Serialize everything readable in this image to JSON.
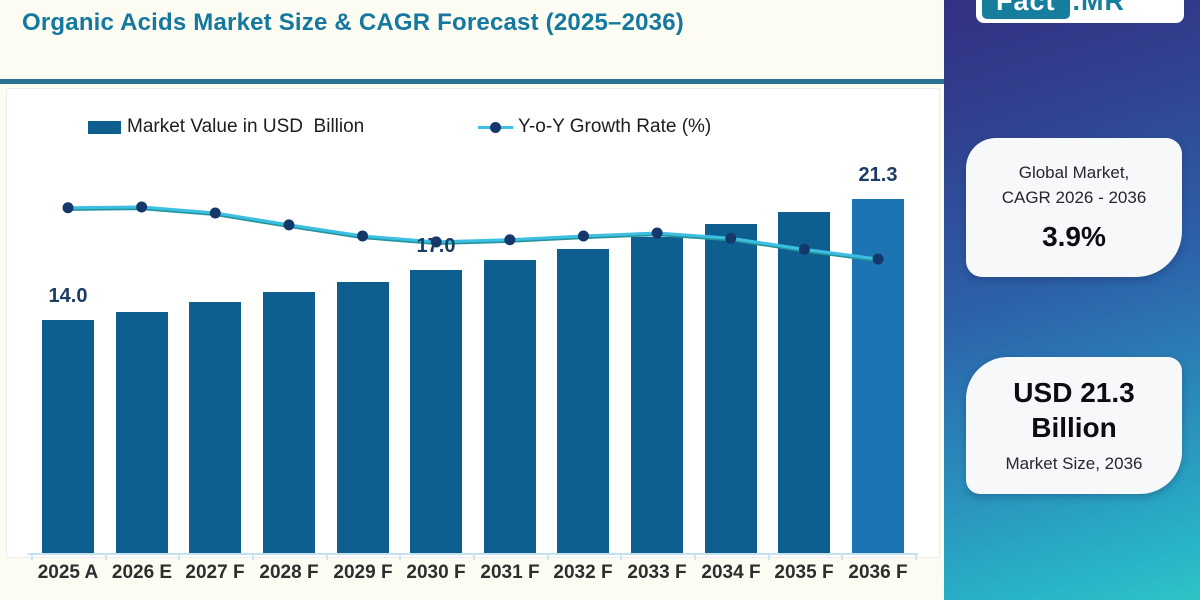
{
  "header": {
    "title": "Organic Acids Market Size & CAGR Forecast (2025–2036)"
  },
  "brand": {
    "logo_primary": "Fact",
    "logo_secondary": ".MR"
  },
  "legend": {
    "bar_series": "Market Value in USD  Billion",
    "line_series": "Y-o-Y Growth Rate (%)"
  },
  "sidebar": {
    "cagr_card": {
      "line1": "Global Market,",
      "line2": "CAGR 2026 - 2036",
      "value": "3.9%"
    },
    "size_card": {
      "value": "USD 21.3 Billion",
      "caption": "Market Size, 2036"
    }
  },
  "chart_data": {
    "type": "bar",
    "title": "Organic Acids Market Size & CAGR Forecast (2025–2036)",
    "categories": [
      "2025 A",
      "2026 E",
      "2027 F",
      "2028 F",
      "2029 F",
      "2030 F",
      "2031 F",
      "2032 F",
      "2033 F",
      "2034 F",
      "2035 F",
      "2036 F"
    ],
    "series": [
      {
        "name": "Market Value in USD Billion",
        "type": "bar",
        "unit": "USD Billion",
        "values": [
          14.0,
          14.5,
          15.1,
          15.7,
          16.3,
          17.0,
          17.6,
          18.3,
          19.0,
          19.8,
          20.5,
          21.3
        ],
        "data_labels": [
          "14.0",
          null,
          null,
          null,
          null,
          "17.0",
          null,
          null,
          null,
          null,
          null,
          "21.3"
        ]
      },
      {
        "name": "Y-o-Y Growth Rate (%)",
        "type": "line",
        "unit": "%",
        "values_estimated": true,
        "values": [
          4.29,
          4.3,
          4.22,
          4.06,
          3.91,
          3.83,
          3.86,
          3.91,
          3.95,
          3.88,
          3.73,
          3.6
        ]
      }
    ],
    "xlabel": "",
    "ylabel": "",
    "ylim_bar": [
      0,
      28
    ],
    "y_axis_visible": false,
    "grid": false,
    "legend_position": "top"
  },
  "colors": {
    "title_teal": "#15789f",
    "divider_teal": "#2a7292",
    "bar_blue": "#0e5e8f",
    "bar_last_blue": "#1d74b2",
    "line_cyan": "#3cbfe2",
    "line_teal_shadow": "#23949b",
    "dot_navy": "#14386a",
    "value_label_navy": "#1d3c63",
    "page_bg": "#fcfcf2",
    "sidebar_gradient_top": "#333083",
    "sidebar_gradient_mid": "#2c62a9",
    "sidebar_gradient_bottom": "#2fc4c4",
    "card_bg": "#f7f8fa",
    "logo_teal": "#177d9d"
  }
}
